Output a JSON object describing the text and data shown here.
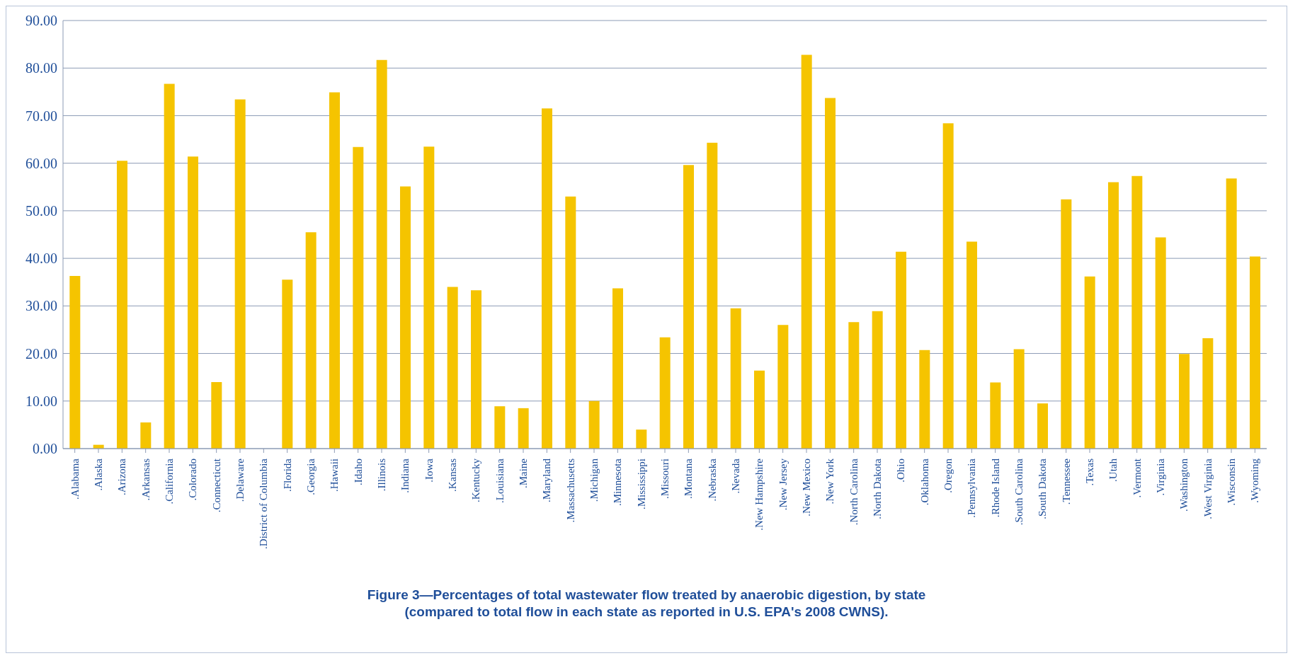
{
  "chart_data": {
    "type": "bar",
    "title": "Figure 3—Percentages of total wastewater flow treated by anaerobic digestion, by state",
    "subtitle": "(compared to total flow in each state as reported in U.S. EPA's 2008 CWNS).",
    "categories": [
      ".Alabama",
      ".Alaska",
      ".Arizona",
      ".Arkansas",
      ".California",
      ".Colorado",
      ".Connecticut",
      ".Delaware",
      ".District of Columbia",
      ".Florida",
      ".Georgia",
      ".Hawaii",
      ".Idaho",
      ".Illinois",
      ".Indiana",
      ".Iowa",
      ".Kansas",
      ".Kentucky",
      ".Louisiana",
      ".Maine",
      ".Maryland",
      ".Massachusetts",
      ".Michigan",
      ".Minnesota",
      ".Mississippi",
      ".Missouri",
      ".Montana",
      ".Nebraska",
      ".Nevada",
      ".New Hampshire",
      ".New Jersey",
      ".New Mexico",
      ".New York",
      ".North Carolina",
      ".North Dakota",
      ".Ohio",
      ".Oklahoma",
      ".Oregon",
      ".Pennsylvania",
      ".Rhode Island",
      ".South Carolina",
      ".South Dakota",
      ".Tennessee",
      ".Texas",
      ".Utah",
      ".Vermont",
      ".Virginia",
      ".Washington",
      ".West Virginia",
      ".Wisconsin",
      ".Wyoming"
    ],
    "values": [
      36.3,
      0.8,
      60.5,
      5.5,
      76.7,
      61.4,
      14.0,
      73.4,
      0,
      35.5,
      45.5,
      74.9,
      63.4,
      81.7,
      55.1,
      63.5,
      34.0,
      33.3,
      8.9,
      8.5,
      71.5,
      53.0,
      10.0,
      33.7,
      4.0,
      23.4,
      59.6,
      64.3,
      29.5,
      16.4,
      26.0,
      82.8,
      73.7,
      26.6,
      28.9,
      41.4,
      20.7,
      68.4,
      43.5,
      13.9,
      20.9,
      9.5,
      52.4,
      36.2,
      56.0,
      57.3,
      44.4,
      19.9,
      23.2,
      56.8,
      40.4
    ],
    "color": "#f5c400",
    "ylim": [
      0,
      90
    ],
    "yticks": [
      {
        "value": 0,
        "label": "0.00"
      },
      {
        "value": 10,
        "label": "10.00"
      },
      {
        "value": 20,
        "label": "20.00"
      },
      {
        "value": 30,
        "label": "30.00"
      },
      {
        "value": 40,
        "label": "40.00"
      },
      {
        "value": 50,
        "label": "50.00"
      },
      {
        "value": 60,
        "label": "60.00"
      },
      {
        "value": 70,
        "label": "70.00"
      },
      {
        "value": 80,
        "label": "80.00"
      },
      {
        "value": 90,
        "label": "90.00"
      }
    ],
    "grid": "y",
    "legend": false
  }
}
